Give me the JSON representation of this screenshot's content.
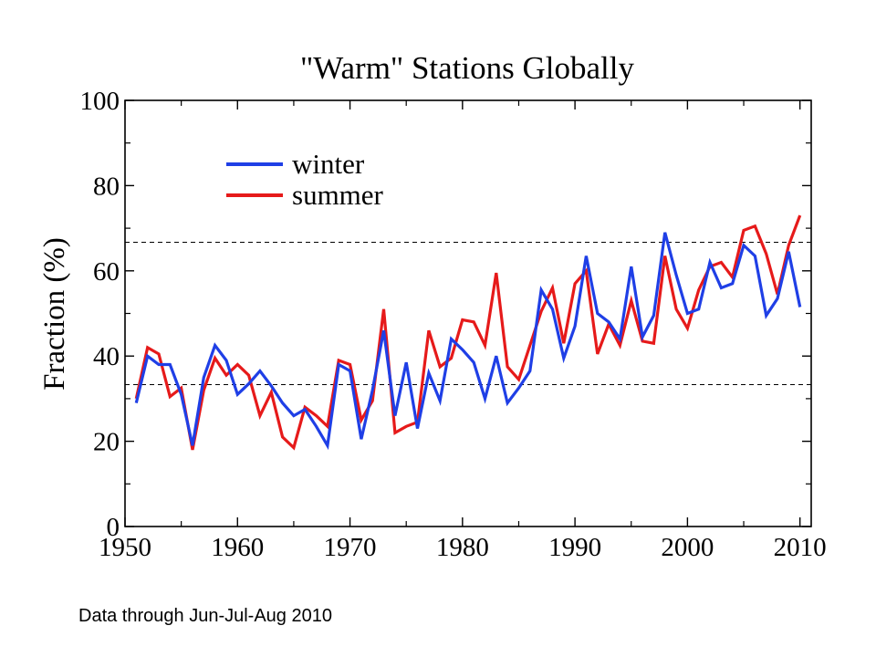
{
  "chart_data": {
    "type": "line",
    "title": "\"Warm\" Stations Globally",
    "xlabel": "",
    "ylabel": "Fraction (%)",
    "xlim": [
      1950,
      2011
    ],
    "ylim": [
      0,
      100
    ],
    "xticks": [
      1950,
      1960,
      1970,
      1980,
      1990,
      2000,
      2010
    ],
    "yticks": [
      0,
      20,
      40,
      60,
      80,
      100
    ],
    "reference_lines": [
      33.3,
      66.7
    ],
    "grid": false,
    "legend_position": "upper-left",
    "x": [
      1951,
      1952,
      1953,
      1954,
      1955,
      1956,
      1957,
      1958,
      1959,
      1960,
      1961,
      1962,
      1963,
      1964,
      1965,
      1966,
      1967,
      1968,
      1969,
      1970,
      1971,
      1972,
      1973,
      1974,
      1975,
      1976,
      1977,
      1978,
      1979,
      1980,
      1981,
      1982,
      1983,
      1984,
      1985,
      1986,
      1987,
      1988,
      1989,
      1990,
      1991,
      1992,
      1993,
      1994,
      1995,
      1996,
      1997,
      1998,
      1999,
      2000,
      2001,
      2002,
      2003,
      2004,
      2005,
      2006,
      2007,
      2008,
      2009,
      2010
    ],
    "series": [
      {
        "name": "winter",
        "color": "#1f3fe6",
        "values": [
          29,
          40,
          38,
          38,
          31,
          19,
          35,
          42.5,
          39,
          31,
          33.5,
          36.5,
          33,
          29,
          26,
          27.5,
          23.5,
          19,
          38,
          36.5,
          20.5,
          32,
          46,
          26,
          38.5,
          23,
          36,
          29.5,
          44,
          41.5,
          38.5,
          30,
          40,
          29,
          32.5,
          36.5,
          55.5,
          51,
          39.5,
          47,
          63.5,
          50,
          48,
          44,
          61,
          44.5,
          49.5,
          69,
          59,
          50,
          51,
          62,
          56,
          57,
          66,
          63.5,
          49.5,
          53.5,
          64.5,
          51.5
        ]
      },
      {
        "name": "summer",
        "color": "#e61a1a",
        "values": [
          30,
          42,
          40.5,
          30.5,
          32.5,
          18,
          32,
          39.5,
          35.5,
          38,
          35.5,
          26,
          31.5,
          21,
          18.5,
          28,
          26,
          23.5,
          39,
          38,
          25,
          29.5,
          51,
          22,
          23.5,
          24.5,
          46,
          37.5,
          39.5,
          48.5,
          48,
          42.5,
          59.5,
          37.5,
          34.5,
          42.5,
          50.5,
          56,
          43,
          57,
          60,
          40.5,
          47.5,
          42.5,
          53,
          43.5,
          43,
          63.5,
          51,
          46.5,
          55.5,
          61,
          62,
          58.5,
          69.5,
          70.5,
          64,
          54.5,
          66,
          73
        ]
      }
    ]
  },
  "footnote": "Data through Jun-Jul-Aug 2010"
}
